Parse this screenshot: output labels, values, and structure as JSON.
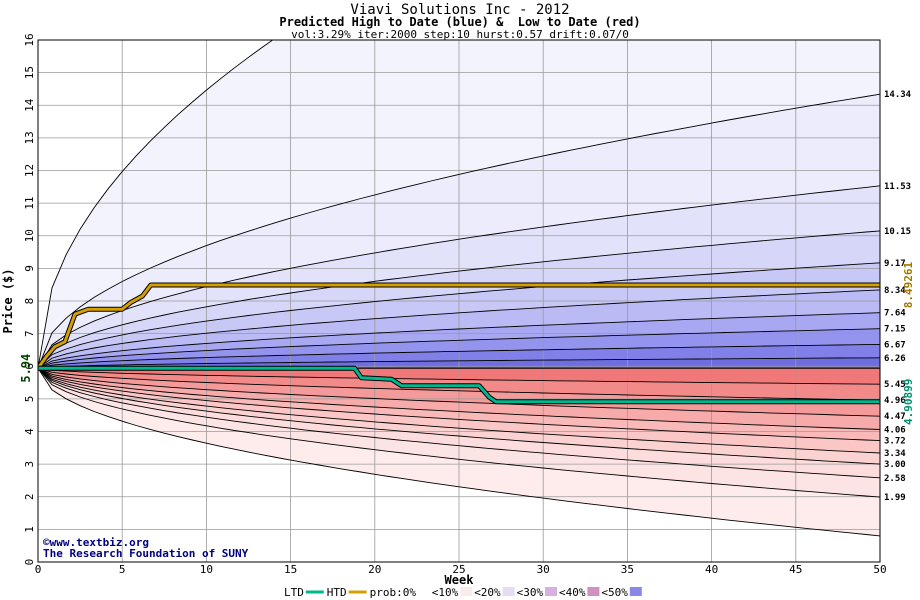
{
  "chart_data": {
    "type": "area",
    "title": "Viavi Solutions Inc - 2012",
    "subtitle": "Predicted High to Date (blue) &  Low to Date (red)",
    "params": "vol:3.29% iter:2000 step:10 hurst:0.57 drift:0.07/0",
    "xlabel": "Week",
    "ylabel": "Price ($)",
    "xlim": [
      0,
      50
    ],
    "ylim": [
      0,
      16
    ],
    "x_ticks": [
      0,
      5,
      10,
      15,
      20,
      25,
      30,
      35,
      40,
      45,
      50
    ],
    "y_ticks": [
      0,
      1,
      2,
      3,
      4,
      5,
      6,
      7,
      8,
      9,
      10,
      11,
      12,
      13,
      14,
      15,
      16
    ],
    "grid": true,
    "start_price": 5.94,
    "start_label": "5.94",
    "high_contours": [
      {
        "end": 6.26,
        "label": "6.26"
      },
      {
        "end": 6.67,
        "label": "6.67"
      },
      {
        "end": 7.15,
        "label": "7.15"
      },
      {
        "end": 7.64,
        "label": "7.64"
      },
      {
        "end": 8.34,
        "label": "8.34"
      },
      {
        "end": 9.17,
        "label": "9.17"
      },
      {
        "end": 10.15,
        "label": "10.15"
      },
      {
        "end": 11.53,
        "label": "11.53"
      },
      {
        "end": 14.34,
        "label": "14.34"
      },
      {
        "end": 25.0,
        "label": ""
      }
    ],
    "low_contours": [
      {
        "end": 5.45,
        "label": "5.45"
      },
      {
        "end": 4.96,
        "label": "4.96"
      },
      {
        "end": 4.47,
        "label": "4.47"
      },
      {
        "end": 4.06,
        "label": "4.06"
      },
      {
        "end": 3.72,
        "label": "3.72"
      },
      {
        "end": 3.34,
        "label": "3.34"
      },
      {
        "end": 3.0,
        "label": "3.00"
      },
      {
        "end": 2.58,
        "label": "2.58"
      },
      {
        "end": 1.99,
        "label": "1.99"
      },
      {
        "end": 0.8,
        "label": ""
      }
    ],
    "htd_series": {
      "name": "HTD",
      "color": "#d4a000",
      "end_label": "8.49261",
      "points": [
        [
          0,
          5.94
        ],
        [
          0.5,
          6.3
        ],
        [
          1.0,
          6.6
        ],
        [
          1.6,
          6.75
        ],
        [
          2.2,
          7.6
        ],
        [
          3.0,
          7.75
        ],
        [
          4.0,
          7.75
        ],
        [
          5.0,
          7.75
        ],
        [
          5.5,
          7.95
        ],
        [
          6.2,
          8.15
        ],
        [
          6.7,
          8.49
        ],
        [
          10,
          8.49
        ],
        [
          20,
          8.49
        ],
        [
          30,
          8.49
        ],
        [
          40,
          8.49
        ],
        [
          50,
          8.49
        ]
      ]
    },
    "ltd_series": {
      "name": "LTD",
      "color": "#00b890",
      "end_label": "4.90899",
      "points": [
        [
          0,
          5.94
        ],
        [
          5,
          5.94
        ],
        [
          10,
          5.94
        ],
        [
          15,
          5.94
        ],
        [
          18.8,
          5.94
        ],
        [
          19.2,
          5.65
        ],
        [
          21,
          5.6
        ],
        [
          21.6,
          5.4
        ],
        [
          26.2,
          5.4
        ],
        [
          26.8,
          5.05
        ],
        [
          27.2,
          4.91
        ],
        [
          35,
          4.91
        ],
        [
          40,
          4.91
        ],
        [
          50,
          4.91
        ]
      ]
    },
    "legend": {
      "ltd": "LTD",
      "htd": "HTD",
      "prob_prefix": "prob:0%",
      "buckets": [
        "<10%",
        "<20%",
        "<30%",
        "<40%",
        "<50%"
      ]
    },
    "colors": {
      "blue_bands": [
        "#6e6ee0",
        "#8080e8",
        "#9494ee",
        "#a8a8f2",
        "#babaf5",
        "#c8c8f7",
        "#d6d6f9",
        "#e2e2fb",
        "#ececfc",
        "#f3f3fe"
      ],
      "red_bands": [
        "#f07878",
        "#f38a8a",
        "#f59a9a",
        "#f7aaaa",
        "#f9b9b9",
        "#fac6c6",
        "#fbd2d2",
        "#fcdcdc",
        "#fde4e4",
        "#feecec"
      ],
      "legend_swatches": [
        "#ffffff",
        "#fbecec",
        "#e6dcf4",
        "#d8b0e0",
        "#d090c0",
        "#8888e8"
      ],
      "label_htd": "#a07800",
      "label_ltd": "#009070"
    },
    "credit": {
      "website": "©www.textbiz.org",
      "organization": "The Research Foundation of SUNY"
    }
  }
}
